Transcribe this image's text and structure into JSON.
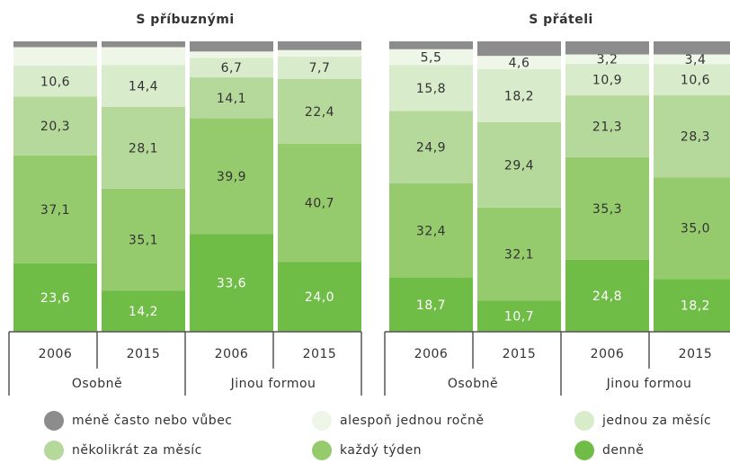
{
  "chart_data": {
    "type": "bar",
    "stacked": true,
    "ylim": [
      0,
      100
    ],
    "series": [
      {
        "name": "méně často nebo vůbec",
        "color": "#8c8c8c"
      },
      {
        "name": "alespoň jednou ročně",
        "color": "#eef6e8"
      },
      {
        "name": "jednou za měsíc",
        "color": "#d8ebca"
      },
      {
        "name": "několikrát za měsíc",
        "color": "#b5d99a"
      },
      {
        "name": "každý týden",
        "color": "#95cb6c"
      },
      {
        "name": "denně",
        "color": "#6fbc46"
      }
    ],
    "panels": [
      {
        "title": "S příbuznými",
        "categories": [
          "2006",
          "2015",
          "2006",
          "2015"
        ],
        "groups": [
          "Osobně",
          "Jinou formou"
        ],
        "series": [
          {
            "values": [
              2.0,
              2.0,
              3.5,
              3.0
            ],
            "value_labels": [
              null,
              null,
              null,
              null
            ]
          },
          {
            "values": [
              6.4,
              6.2,
              2.2,
              2.2
            ],
            "value_labels": [
              null,
              null,
              null,
              null
            ]
          },
          {
            "values": [
              10.6,
              14.4,
              6.7,
              7.7
            ],
            "value_labels": [
              "10,6",
              "14,4",
              "6,7",
              "7,7"
            ]
          },
          {
            "values": [
              20.3,
              28.1,
              14.1,
              22.4
            ],
            "value_labels": [
              "20,3",
              "28,1",
              "14,1",
              "22,4"
            ]
          },
          {
            "values": [
              37.1,
              35.1,
              39.9,
              40.7
            ],
            "value_labels": [
              "37,1",
              "35,1",
              "39,9",
              "40,7"
            ]
          },
          {
            "values": [
              23.6,
              14.2,
              33.6,
              24.0
            ],
            "value_labels": [
              "23,6",
              "14,2",
              "33,6",
              "24,0"
            ]
          }
        ]
      },
      {
        "title": "S přáteli",
        "categories": [
          "2006",
          "2015",
          "2006",
          "2015"
        ],
        "groups": [
          "Osobně",
          "Jinou formou"
        ],
        "series": [
          {
            "values": [
              2.7,
              5.0,
              4.5,
              4.5
            ],
            "value_labels": [
              null,
              null,
              null,
              null
            ]
          },
          {
            "values": [
              5.5,
              4.6,
              3.2,
              3.4
            ],
            "value_labels": [
              "5,5",
              "4,6",
              "3,2",
              "3,4"
            ]
          },
          {
            "values": [
              15.8,
              18.2,
              10.9,
              10.6
            ],
            "value_labels": [
              "15,8",
              "18,2",
              "10,9",
              "10,6"
            ]
          },
          {
            "values": [
              24.9,
              29.4,
              21.3,
              28.3
            ],
            "value_labels": [
              "24,9",
              "29,4",
              "21,3",
              "28,3"
            ]
          },
          {
            "values": [
              32.4,
              32.1,
              35.3,
              35.0
            ],
            "value_labels": [
              "32,4",
              "32,1",
              "35,3",
              "35,0"
            ]
          },
          {
            "values": [
              18.7,
              10.7,
              24.8,
              18.2
            ],
            "value_labels": [
              "18,7",
              "10,7",
              "24,8",
              "18,2"
            ]
          }
        ]
      }
    ]
  }
}
